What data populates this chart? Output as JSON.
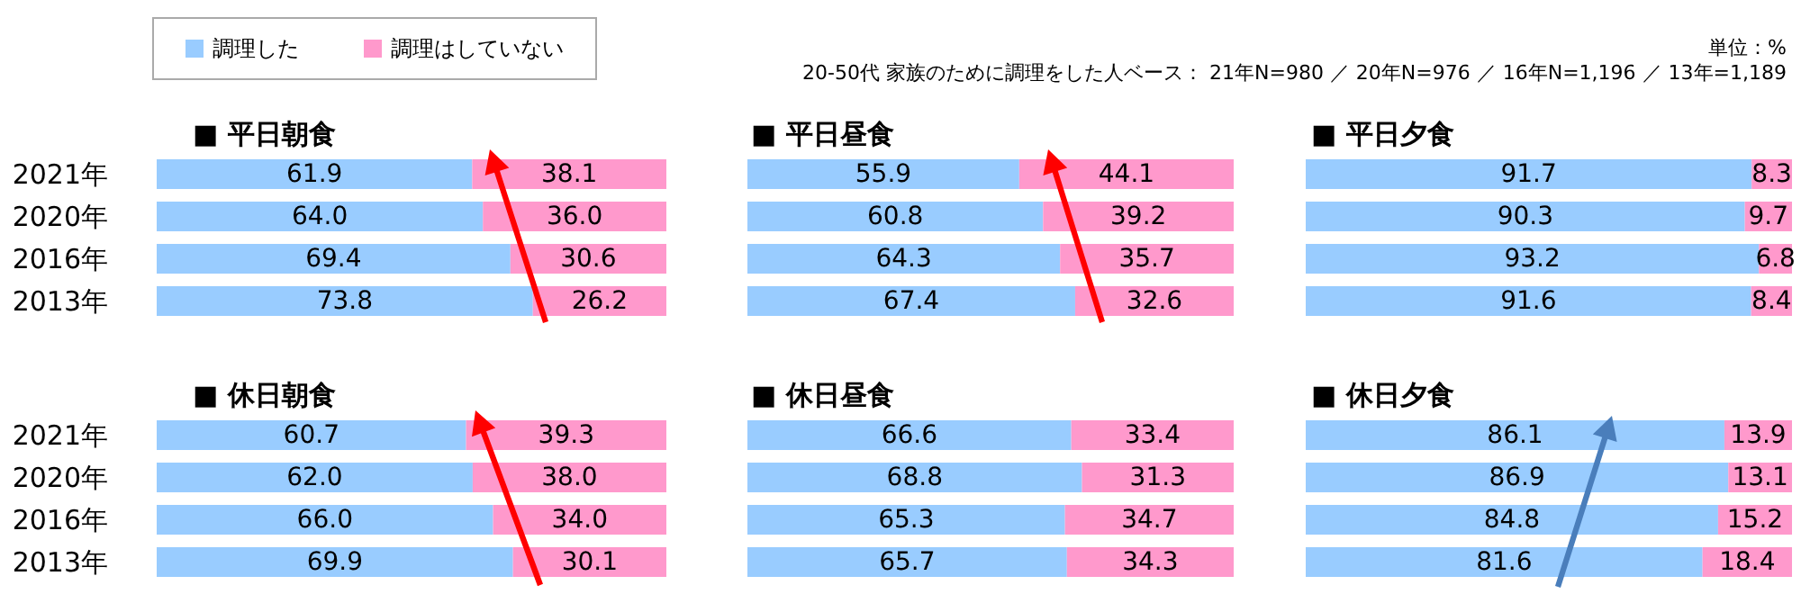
{
  "chart_data": [
    {
      "type": "bar",
      "orientation": "horizontal",
      "stacked": true,
      "title": "■ 平日朝食",
      "categories": [
        "2021年",
        "2020年",
        "2016年",
        "2013年"
      ],
      "xlim": [
        0,
        100
      ],
      "legend": "top left",
      "tick_labels": "y",
      "annotations": [
        "単位：%",
        "20-50代  家族のために調理をした人ベース： 21年N=980 ／ 20年N=976 ／ 16年N=1,196 ／ 13年=1,189"
      ],
      "series": [
        {
          "name": "調理した",
          "color": "#99ccff",
          "values": [
            61.9,
            64.0,
            69.4,
            73.8
          ],
          "value_labels": [
            "61.9",
            "64.0",
            "69.4",
            "73.8"
          ]
        },
        {
          "name": "調理はしていない",
          "color": "#ff99cc",
          "values": [
            38.1,
            36.0,
            30.6,
            26.2
          ],
          "value_labels": [
            "38.1",
            "36.0",
            "30.6",
            "26.2"
          ]
        }
      ]
    },
    {
      "type": "bar",
      "orientation": "horizontal",
      "stacked": true,
      "title": "■ 平日昼食",
      "categories": [
        null,
        null,
        null,
        null
      ],
      "xlim": [
        0,
        100
      ],
      "series": [
        {
          "color": "#99ccff",
          "values": [
            55.9,
            60.8,
            64.3,
            67.4
          ],
          "value_labels": [
            "55.9",
            "60.8",
            "64.3",
            "67.4"
          ]
        },
        {
          "color": "#ff99cc",
          "values": [
            44.1,
            39.2,
            35.7,
            32.6
          ],
          "value_labels": [
            "44.1",
            "39.2",
            "35.7",
            "32.6"
          ]
        }
      ]
    },
    {
      "type": "bar",
      "orientation": "horizontal",
      "stacked": true,
      "title": "■ 平日夕食",
      "categories": [
        null,
        null,
        null,
        null
      ],
      "xlim": [
        0,
        100
      ],
      "series": [
        {
          "color": "#99ccff",
          "values": [
            91.7,
            90.3,
            93.2,
            91.6
          ],
          "value_labels": [
            "91.7",
            "90.3",
            "93.2",
            "91.6"
          ]
        },
        {
          "color": "#ff99cc",
          "values": [
            8.3,
            9.7,
            6.8,
            8.4
          ],
          "value_labels": [
            "8.3",
            "9.7",
            "6.8",
            "8.4"
          ]
        }
      ]
    },
    {
      "type": "bar",
      "orientation": "horizontal",
      "stacked": true,
      "title": "■ 休日朝食",
      "categories": [
        "2021年",
        "2020年",
        "2016年",
        "2013年"
      ],
      "xlim": [
        0,
        100
      ],
      "tick_labels": "y",
      "series": [
        {
          "color": "#99ccff",
          "values": [
            60.7,
            62.0,
            66.0,
            69.9
          ],
          "value_labels": [
            "60.7",
            "62.0",
            "66.0",
            "69.9"
          ]
        },
        {
          "color": "#ff99cc",
          "values": [
            39.3,
            38.0,
            34.0,
            30.1
          ],
          "value_labels": [
            "39.3",
            "38.0",
            "34.0",
            "30.1"
          ]
        }
      ]
    },
    {
      "type": "bar",
      "orientation": "horizontal",
      "stacked": true,
      "title": "■ 休日昼食",
      "categories": [
        null,
        null,
        null,
        null
      ],
      "xlim": [
        0,
        100
      ],
      "series": [
        {
          "color": "#99ccff",
          "values": [
            66.6,
            68.8,
            65.3,
            65.7
          ],
          "value_labels": [
            "66.6",
            "68.8",
            "65.3",
            "65.7"
          ]
        },
        {
          "color": "#ff99cc",
          "values": [
            33.4,
            31.3,
            34.7,
            34.3
          ],
          "value_labels": [
            "33.4",
            "31.3",
            "34.7",
            "34.3"
          ]
        }
      ]
    },
    {
      "type": "bar",
      "orientation": "horizontal",
      "stacked": true,
      "title": "■ 休日夕食",
      "categories": [
        null,
        null,
        null,
        null
      ],
      "xlim": [
        0,
        100
      ],
      "series": [
        {
          "color": "#99ccff",
          "values": [
            86.1,
            86.9,
            84.8,
            81.6
          ],
          "value_labels": [
            "86.1",
            "86.9",
            "84.8",
            "81.6"
          ]
        },
        {
          "color": "#ff99cc",
          "values": [
            13.9,
            13.1,
            15.2,
            18.4
          ],
          "value_labels": [
            "13.9",
            "13.1",
            "15.2",
            "18.4"
          ]
        }
      ]
    }
  ]
}
